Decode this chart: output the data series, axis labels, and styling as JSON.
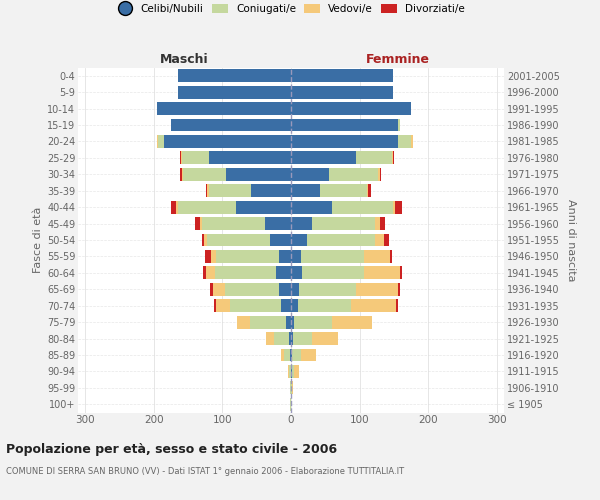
{
  "age_groups": [
    "100+",
    "95-99",
    "90-94",
    "85-89",
    "80-84",
    "75-79",
    "70-74",
    "65-69",
    "60-64",
    "55-59",
    "50-54",
    "45-49",
    "40-44",
    "35-39",
    "30-34",
    "25-29",
    "20-24",
    "15-19",
    "10-14",
    "5-9",
    "0-4"
  ],
  "birth_years": [
    "≤ 1905",
    "1906-1910",
    "1911-1915",
    "1916-1920",
    "1921-1925",
    "1926-1930",
    "1931-1935",
    "1936-1940",
    "1941-1945",
    "1946-1950",
    "1951-1955",
    "1956-1960",
    "1961-1965",
    "1966-1970",
    "1971-1975",
    "1976-1980",
    "1981-1985",
    "1986-1990",
    "1991-1995",
    "1996-2000",
    "2001-2005"
  ],
  "males": {
    "celibi": [
      0,
      0,
      0,
      2,
      3,
      8,
      14,
      18,
      22,
      17,
      30,
      38,
      80,
      58,
      95,
      120,
      185,
      175,
      195,
      165,
      165
    ],
    "coniugati": [
      1,
      1,
      3,
      8,
      22,
      52,
      75,
      78,
      88,
      92,
      92,
      92,
      85,
      62,
      62,
      38,
      9,
      0,
      0,
      0,
      0
    ],
    "vedovi": [
      0,
      1,
      2,
      5,
      12,
      18,
      20,
      18,
      14,
      8,
      5,
      3,
      2,
      2,
      2,
      2,
      1,
      0,
      0,
      0,
      0
    ],
    "divorziati": [
      0,
      0,
      0,
      0,
      0,
      0,
      3,
      4,
      4,
      8,
      3,
      6,
      8,
      2,
      2,
      2,
      0,
      0,
      0,
      0,
      0
    ]
  },
  "females": {
    "nubili": [
      0,
      0,
      1,
      2,
      3,
      5,
      10,
      12,
      16,
      14,
      24,
      30,
      60,
      42,
      55,
      95,
      155,
      155,
      175,
      148,
      148
    ],
    "coniugate": [
      0,
      1,
      3,
      12,
      28,
      55,
      78,
      82,
      90,
      92,
      98,
      92,
      88,
      68,
      72,
      52,
      20,
      4,
      0,
      0,
      0
    ],
    "vedove": [
      0,
      2,
      8,
      22,
      38,
      58,
      65,
      62,
      52,
      38,
      14,
      7,
      4,
      2,
      2,
      2,
      2,
      0,
      0,
      0,
      0
    ],
    "divorziate": [
      0,
      0,
      0,
      0,
      0,
      0,
      2,
      3,
      4,
      3,
      6,
      8,
      9,
      4,
      2,
      1,
      0,
      0,
      0,
      0,
      0
    ]
  },
  "colors": {
    "celibi_nubili": "#3A6EA5",
    "coniugati": "#C5D89E",
    "vedovi": "#F5C97A",
    "divorziati": "#CC2222"
  },
  "xlim": 310,
  "title": "Popolazione per età, sesso e stato civile - 2006",
  "subtitle": "COMUNE DI SERRA SAN BRUNO (VV) - Dati ISTAT 1° gennaio 2006 - Elaborazione TUTTITALIA.IT",
  "ylabel_left": "Fasce di età",
  "ylabel_right": "Anni di nascita",
  "xlabel_maschi": "Maschi",
  "xlabel_femmine": "Femmine",
  "legend_labels": [
    "Celibi/Nubili",
    "Coniugati/e",
    "Vedovi/e",
    "Divorziati/e"
  ],
  "bg_color": "#f2f2f2",
  "plot_bg_color": "#ffffff"
}
